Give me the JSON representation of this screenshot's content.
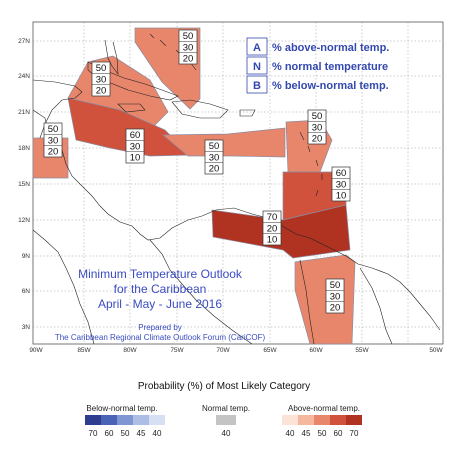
{
  "map": {
    "title_lines": [
      "Minimum Temperature Outlook",
      "for the Caribbean",
      "April - May - June 2016"
    ],
    "credit_lines": [
      "Prepared by",
      "The Caribbean Regional Climate Outlook Forum (CariCOF)"
    ],
    "lat_labels": [
      "27N",
      "24N",
      "21N",
      "18N",
      "15N",
      "12N",
      "9N",
      "6N",
      "3N"
    ],
    "lon_labels": [
      "90W",
      "85W",
      "80W",
      "75W",
      "70W",
      "65W",
      "60W",
      "55W",
      "50W"
    ]
  },
  "category_key": [
    {
      "letter": "A",
      "text": "% above-normal temp."
    },
    {
      "letter": "N",
      "text": "% normal temperature"
    },
    {
      "letter": "B",
      "text": "% below-normal temp."
    }
  ],
  "regions": [
    {
      "id": "bahamas-east",
      "above": "50",
      "normal": "30",
      "below": "20",
      "color": "#e8866b"
    },
    {
      "id": "bahamas-west-cuba",
      "above": "50",
      "normal": "30",
      "below": "20",
      "color": "#e8866b"
    },
    {
      "id": "belize",
      "above": "50",
      "normal": "30",
      "below": "20",
      "color": "#e8866b"
    },
    {
      "id": "cayman-jamaica",
      "above": "60",
      "normal": "30",
      "below": "10",
      "color": "#d0523c"
    },
    {
      "id": "hispaniola-pr",
      "above": "50",
      "normal": "30",
      "below": "20",
      "color": "#e8866b"
    },
    {
      "id": "leeward-islands",
      "above": "50",
      "normal": "30",
      "below": "20",
      "color": "#e8866b"
    },
    {
      "id": "windward-islands",
      "above": "60",
      "normal": "30",
      "below": "10",
      "color": "#d0523c"
    },
    {
      "id": "abc-trinidad",
      "above": "70",
      "normal": "20",
      "below": "10",
      "color": "#b03322"
    },
    {
      "id": "guianas",
      "above": "50",
      "normal": "30",
      "below": "20",
      "color": "#e8866b"
    }
  ],
  "legend": {
    "title": "Probability (%) of Most Likely Category",
    "below": {
      "label": "Below-normal temp.",
      "ticks": [
        "70",
        "60",
        "50",
        "45",
        "40"
      ],
      "colors": [
        "#2e3d8f",
        "#4b63b6",
        "#7f96d2",
        "#aebde5",
        "#d7e0f3"
      ]
    },
    "normal": {
      "label": "Normal temp.",
      "ticks": [
        "40"
      ],
      "colors": [
        "#c4c4c4"
      ]
    },
    "above": {
      "label": "Above-normal temp.",
      "ticks": [
        "40",
        "45",
        "50",
        "60",
        "70"
      ],
      "colors": [
        "#fbe3d8",
        "#f5b79e",
        "#e8866b",
        "#d0523c",
        "#b03322"
      ]
    }
  }
}
